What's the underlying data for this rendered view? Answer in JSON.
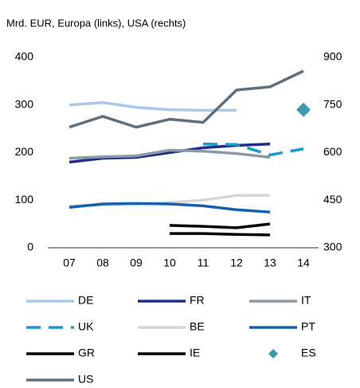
{
  "chart_data": {
    "type": "line",
    "title": "Mrd. EUR, Europa (links), USA (rechts)",
    "categories": [
      "07",
      "08",
      "09",
      "10",
      "11",
      "12",
      "13",
      "14"
    ],
    "ylim": [
      0,
      400
    ],
    "yticks": [
      0,
      100,
      200,
      300,
      400
    ],
    "y2lim": [
      300,
      900
    ],
    "y2ticks": [
      300,
      450,
      600,
      750,
      900
    ],
    "grid": false,
    "series": [
      {
        "name": "DE",
        "color": "#a9c8ec",
        "values": [
          300,
          305,
          295,
          290,
          289,
          289,
          null,
          null
        ]
      },
      {
        "name": "FR",
        "color": "#1f2e8a",
        "values": [
          180,
          188,
          190,
          200,
          210,
          215,
          218,
          null
        ]
      },
      {
        "name": "IT",
        "color": "#8c9aa8",
        "values": [
          188,
          191,
          193,
          205,
          203,
          198,
          190,
          null
        ]
      },
      {
        "name": "UK",
        "color": "#1a9bd0",
        "dashed": true,
        "values": [
          null,
          null,
          null,
          null,
          218,
          217,
          195,
          208
        ]
      },
      {
        "name": "BE",
        "color": "#d3d7db",
        "values": [
          88,
          90,
          92,
          95,
          100,
          110,
          110,
          null
        ]
      },
      {
        "name": "PT",
        "color": "#1560b0",
        "values": [
          85,
          92,
          93,
          92,
          88,
          80,
          75,
          null
        ]
      },
      {
        "name": "GR",
        "color": "#000000",
        "values": [
          null,
          null,
          null,
          47,
          45,
          42,
          50,
          null
        ]
      },
      {
        "name": "IE",
        "color": "#000000",
        "values": [
          null,
          null,
          null,
          30,
          30,
          28,
          27,
          null
        ]
      },
      {
        "name": "ES",
        "color": "#3a9bb0",
        "marker": "diamond",
        "axis": "y2",
        "values": [
          null,
          null,
          null,
          null,
          null,
          null,
          null,
          735
        ]
      },
      {
        "name": "US",
        "color": "#5d7080",
        "axis": "y2",
        "values": [
          680,
          714,
          680,
          705,
          695,
          797,
          807,
          857
        ]
      }
    ]
  }
}
